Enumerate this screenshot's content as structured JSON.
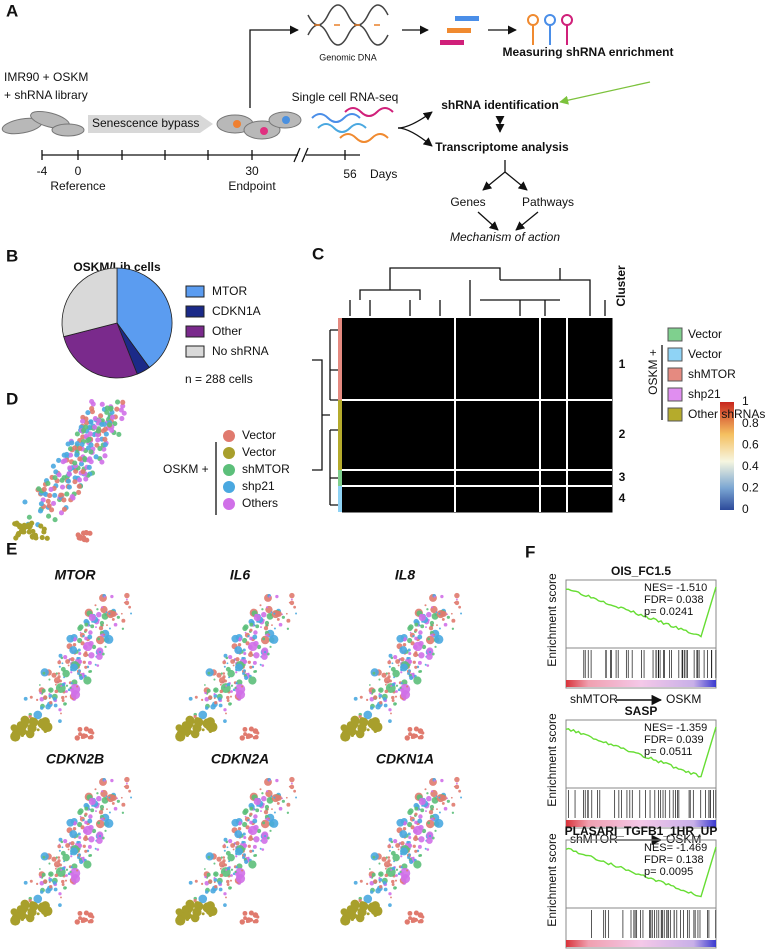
{
  "panel_a": {
    "label": "A",
    "cells_line1": "IMR90 + OSKM",
    "cells_line2": "+ shRNA library",
    "senescence": "Senescence bypass",
    "genomic_dna": "Genomic DNA",
    "measuring": "Measuring shRNA enrichment",
    "single_cell": "Single cell RNA-seq",
    "shrna_id": "shRNA identification",
    "transcriptome": "Transcriptome analysis",
    "genes": "Genes",
    "pathways": "Pathways",
    "mechanism": "Mechanism of action",
    "days": [
      -4,
      0,
      30,
      56
    ],
    "reference": "Reference",
    "endpoint": "Endpoint",
    "days_unit": "Days"
  },
  "panel_b": {
    "label": "B",
    "type": "pie",
    "title": "OSKM/Lib cells",
    "categories": [
      "MTOR",
      "CDKN1A",
      "Other",
      "No shRNA"
    ],
    "values": [
      40,
      4,
      27,
      29
    ],
    "colors": [
      "#5b9cf0",
      "#1b2a88",
      "#7a2a8c",
      "#d9d9d9"
    ],
    "note": "n = 288 cells"
  },
  "panel_c": {
    "label": "C",
    "cluster_title": "Cluster",
    "clusters": [
      1,
      2,
      3,
      4
    ],
    "legend_prefix": "OSKM +",
    "legend": [
      {
        "name": "Vector",
        "color": "#7fd08e"
      },
      {
        "name": "Vector",
        "color": "#8fd3f5"
      },
      {
        "name": "shMTOR",
        "color": "#e58a80"
      },
      {
        "name": "shp21",
        "color": "#e08ef0"
      },
      {
        "name": "Other shRNAs",
        "color": "#b5ab2c"
      }
    ],
    "colorbar_ticks": [
      1,
      0.8,
      0.6,
      0.4,
      0.2,
      0
    ]
  },
  "panel_d": {
    "label": "D",
    "legend_prefix": "OSKM +",
    "legend": [
      {
        "name": "Vector",
        "color": "#e07a6e"
      },
      {
        "name": "Vector",
        "color": "#a89f2c"
      },
      {
        "name": "shMTOR",
        "color": "#5cbf7a"
      },
      {
        "name": "shp21",
        "color": "#4aa8e0"
      },
      {
        "name": "Others",
        "color": "#d070e8"
      }
    ]
  },
  "panel_e": {
    "label": "E",
    "genes": [
      "MTOR",
      "IL6",
      "IL8",
      "CDKN2B",
      "CDKN2A",
      "CDKN1A"
    ]
  },
  "panel_f": {
    "label": "F",
    "y_label": "Enrichment score",
    "x_from": "shMTOR",
    "x_to": "OSKM",
    "plots": [
      {
        "title": "OIS_FC1.5",
        "stats": [
          "NES= -1.510",
          "FDR= 0.038",
          "p= 0.0241"
        ]
      },
      {
        "title": "SASP",
        "stats": [
          "NES= -1.359",
          "FDR= 0.039",
          "p= 0.0511"
        ]
      },
      {
        "title": "PLASARI_TGFB1_1HR_UP",
        "stats": [
          "NES= -1.469",
          "FDR= 0.138",
          "p= 0.0095"
        ]
      }
    ]
  }
}
